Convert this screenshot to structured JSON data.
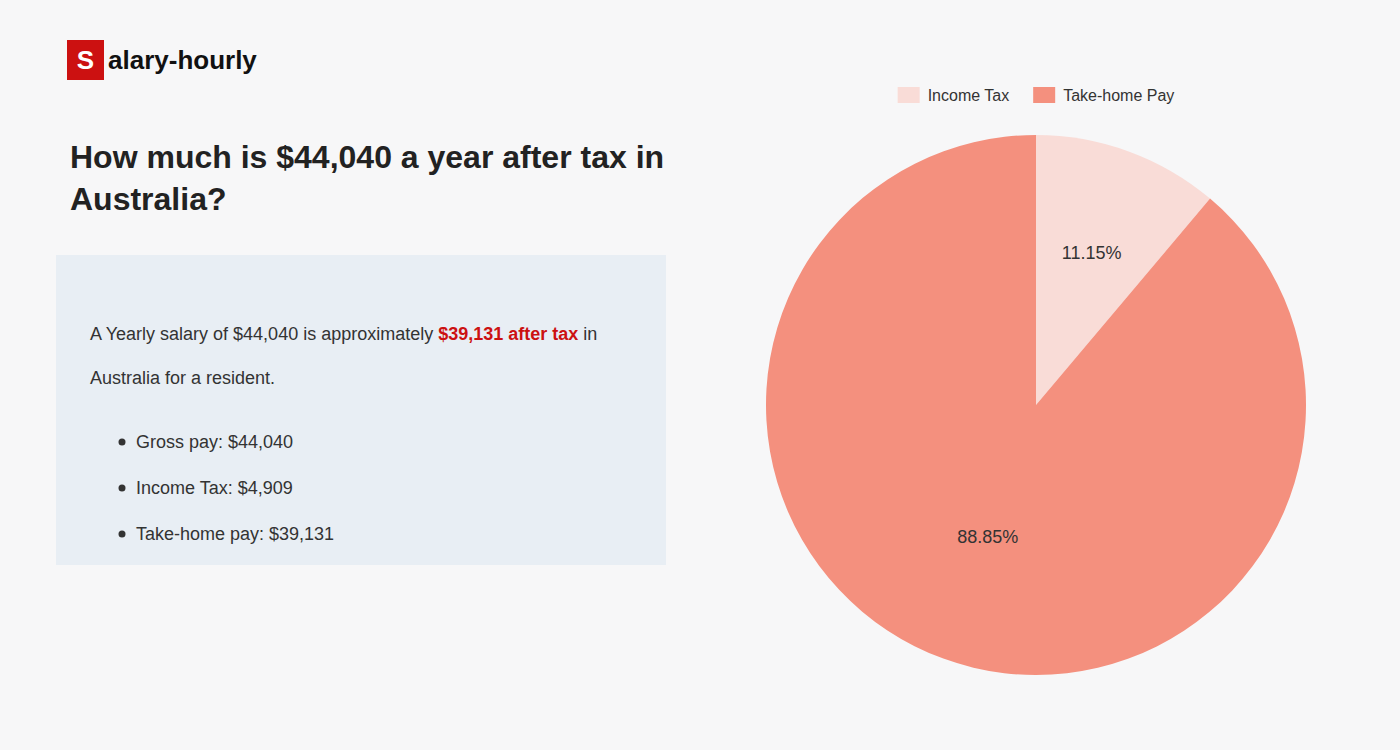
{
  "chart_data": {
    "type": "pie",
    "title": "How much is $44,040 a year after tax in\nAustralia?",
    "categories": [
      "Income Tax",
      "Take-home Pay"
    ],
    "values": [
      11.15,
      88.85
    ],
    "value_labels": [
      "11.15%",
      "88.85%"
    ],
    "colors": [
      "#f9dcd7",
      "#f4907e"
    ],
    "data_labels": true,
    "legend": "top",
    "annotations": [
      {
        "text": "S",
        "color": "#cc1111"
      },
      {
        "text": "alary-hourly"
      },
      {
        "text": "A Yearly salary of $44,040 is approximately "
      },
      {
        "text": "$39,131 after tax",
        "color": "#cc1111"
      },
      {
        "text": " in"
      },
      {
        "text": "Australia for a resident."
      },
      {
        "text": "Gross pay: $44,040"
      },
      {
        "text": "Income Tax: $4,909"
      },
      {
        "text": "Take-home pay: $39,131"
      }
    ]
  }
}
